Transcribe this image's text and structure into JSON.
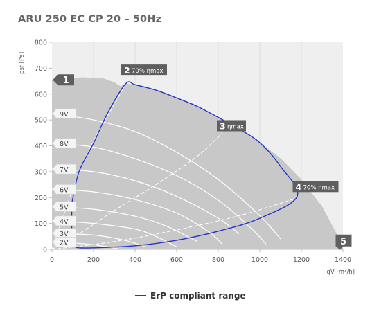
{
  "chart_data": {
    "type": "line",
    "title": "ARU 250 EC CP 20 – 50Hz",
    "xlabel": "qV [m³/h]",
    "ylabel": "psf [Pa]",
    "xlim": [
      0,
      1400
    ],
    "ylim": [
      0,
      800
    ],
    "xticks": [
      0,
      200,
      400,
      600,
      800,
      1000,
      1200,
      1400
    ],
    "yticks": [
      0,
      100,
      200,
      300,
      400,
      500,
      600,
      700,
      800
    ],
    "grid": "vertical",
    "legend_position": "bottom",
    "colors": {
      "envelope": "#c8c8c8",
      "plot_background": "#efefef",
      "voltage_curve": "#ffffff",
      "erp_line": "#2233cc",
      "marker": "#5f5f5f"
    },
    "operating_envelope": [
      [
        0,
        655
      ],
      [
        60,
        661
      ],
      [
        150,
        665
      ],
      [
        250,
        660
      ],
      [
        300,
        645
      ],
      [
        330,
        630
      ],
      [
        355,
        640
      ],
      [
        400,
        636
      ],
      [
        500,
        615
      ],
      [
        600,
        585
      ],
      [
        700,
        552
      ],
      [
        800,
        510
      ],
      [
        900,
        465
      ],
      [
        1000,
        412
      ],
      [
        1100,
        352
      ],
      [
        1200,
        270
      ],
      [
        1300,
        165
      ],
      [
        1400,
        15
      ],
      [
        1400,
        0
      ],
      [
        0,
        0
      ]
    ],
    "voltage_curves": [
      {
        "label": "9V",
        "points": [
          [
            0,
            525
          ],
          [
            200,
            500
          ],
          [
            400,
            455
          ],
          [
            600,
            375
          ],
          [
            800,
            270
          ],
          [
            1000,
            130
          ],
          [
            1100,
            40
          ]
        ]
      },
      {
        "label": "8V",
        "points": [
          [
            0,
            410
          ],
          [
            200,
            395
          ],
          [
            400,
            350
          ],
          [
            600,
            285
          ],
          [
            800,
            190
          ],
          [
            960,
            80
          ],
          [
            1030,
            20
          ]
        ]
      },
      {
        "label": "7V",
        "points": [
          [
            0,
            310
          ],
          [
            200,
            300
          ],
          [
            400,
            265
          ],
          [
            600,
            205
          ],
          [
            800,
            120
          ],
          [
            900,
            60
          ]
        ]
      },
      {
        "label": "6V",
        "points": [
          [
            0,
            232
          ],
          [
            200,
            222
          ],
          [
            400,
            192
          ],
          [
            600,
            140
          ],
          [
            750,
            70
          ],
          [
            820,
            20
          ]
        ]
      },
      {
        "label": "5V",
        "points": [
          [
            0,
            165
          ],
          [
            200,
            155
          ],
          [
            400,
            128
          ],
          [
            550,
            90
          ],
          [
            700,
            30
          ]
        ]
      },
      {
        "label": "4V",
        "points": [
          [
            0,
            110
          ],
          [
            200,
            100
          ],
          [
            400,
            78
          ],
          [
            500,
            50
          ],
          [
            600,
            10
          ]
        ]
      },
      {
        "label": "3V",
        "points": [
          [
            0,
            62
          ],
          [
            200,
            55
          ],
          [
            350,
            35
          ],
          [
            450,
            10
          ]
        ]
      },
      {
        "label": "2V",
        "points": [
          [
            0,
            28
          ],
          [
            150,
            22
          ],
          [
            250,
            12
          ],
          [
            330,
            0
          ]
        ]
      }
    ],
    "efficiency_lines": [
      {
        "label": "2 70% ηmax",
        "points": [
          [
            0,
            0
          ],
          [
            60,
            140
          ],
          [
            130,
            300
          ],
          [
            220,
            450
          ],
          [
            300,
            560
          ],
          [
            360,
            648
          ]
        ]
      },
      {
        "label": "3 ηmax",
        "points": [
          [
            0,
            0
          ],
          [
            150,
            70
          ],
          [
            300,
            150
          ],
          [
            500,
            250
          ],
          [
            700,
            360
          ],
          [
            820,
            450
          ]
        ]
      },
      {
        "label": "4 70% ηmax",
        "points": [
          [
            0,
            0
          ],
          [
            300,
            30
          ],
          [
            600,
            75
          ],
          [
            900,
            130
          ],
          [
            1180,
            198
          ]
        ]
      }
    ],
    "erp_compliant_range": [
      [
        95,
        175
      ],
      [
        130,
        300
      ],
      [
        200,
        410
      ],
      [
        270,
        530
      ],
      [
        355,
        640
      ],
      [
        400,
        636
      ],
      [
        500,
        615
      ],
      [
        600,
        585
      ],
      [
        700,
        552
      ],
      [
        800,
        510
      ],
      [
        900,
        465
      ],
      [
        1000,
        412
      ],
      [
        1100,
        320
      ],
      [
        1180,
        205
      ],
      [
        1000,
        120
      ],
      [
        800,
        70
      ],
      [
        600,
        35
      ],
      [
        400,
        14
      ],
      [
        200,
        6
      ],
      [
        130,
        6
      ],
      [
        110,
        10
      ],
      [
        95,
        15
      ]
    ],
    "markers": [
      {
        "num": "1",
        "x": 20,
        "y": 655
      },
      {
        "num": "2",
        "label": "70% ηmax",
        "x": 360,
        "y": 690
      },
      {
        "num": "3",
        "label": "ηmax",
        "x": 820,
        "y": 475
      },
      {
        "num": "4",
        "label": "70% ηmax",
        "x": 1185,
        "y": 240
      },
      {
        "num": "5",
        "x": 1375,
        "y": 30
      }
    ],
    "legend": "ErP compliant range"
  }
}
